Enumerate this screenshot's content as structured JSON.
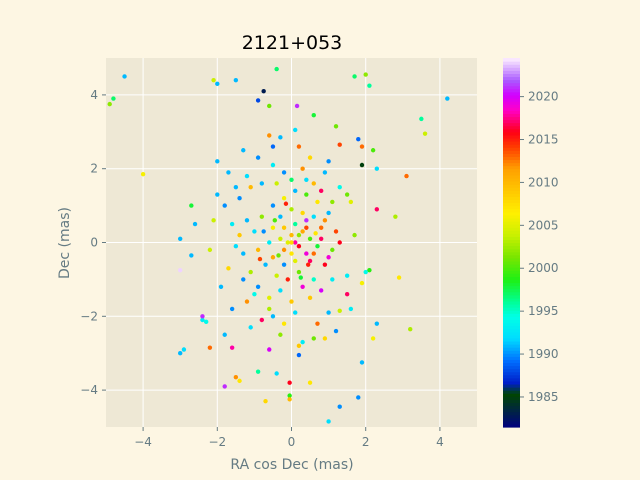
{
  "chart_data": {
    "type": "scatter",
    "title": "2121+053",
    "xlabel": "RA cos Dec (mas)",
    "ylabel": "Dec (mas)",
    "xlim": [
      -5,
      5
    ],
    "ylim": [
      -5,
      5
    ],
    "xticks": [
      -4,
      -2,
      0,
      2,
      4
    ],
    "yticks": [
      -4,
      -2,
      0,
      2,
      4
    ],
    "grid": true,
    "colorbar": {
      "label": "",
      "min": 1981.5,
      "max": 2024.5,
      "ticks": [
        1985,
        1990,
        1995,
        2000,
        2005,
        2010,
        2015,
        2020
      ],
      "colormap": "gist_ncar"
    },
    "points": [
      {
        "x": -4.5,
        "y": 4.5,
        "year": 1991
      },
      {
        "x": -4.8,
        "y": 3.9,
        "year": 1997
      },
      {
        "x": -4.9,
        "y": 3.75,
        "year": 2002
      },
      {
        "x": -4.0,
        "y": 1.85,
        "year": 2006
      },
      {
        "x": -2.1,
        "y": 4.4,
        "year": 2004
      },
      {
        "x": -2.0,
        "y": 4.3,
        "year": 1991
      },
      {
        "x": -1.5,
        "y": 4.4,
        "year": 1991
      },
      {
        "x": -0.75,
        "y": 4.1,
        "year": 1983
      },
      {
        "x": -0.4,
        "y": 4.7,
        "year": 1997
      },
      {
        "x": -0.9,
        "y": 3.85,
        "year": 1988
      },
      {
        "x": -0.6,
        "y": 3.7,
        "year": 2001
      },
      {
        "x": 0.15,
        "y": 3.7,
        "year": 2021
      },
      {
        "x": 0.6,
        "y": 3.45,
        "year": 1998
      },
      {
        "x": 1.7,
        "y": 4.5,
        "year": 1997
      },
      {
        "x": 2.0,
        "y": 4.55,
        "year": 2002
      },
      {
        "x": 2.1,
        "y": 4.25,
        "year": 1996
      },
      {
        "x": 1.2,
        "y": 3.15,
        "year": 2001
      },
      {
        "x": 1.8,
        "y": 2.8,
        "year": 1989
      },
      {
        "x": 1.9,
        "y": 2.6,
        "year": 2013
      },
      {
        "x": 2.2,
        "y": 2.5,
        "year": 2000
      },
      {
        "x": 1.3,
        "y": 2.65,
        "year": 2014
      },
      {
        "x": 0.2,
        "y": 2.6,
        "year": 2013
      },
      {
        "x": 0.1,
        "y": 3.05,
        "year": 1992
      },
      {
        "x": -0.3,
        "y": 2.85,
        "year": 1991
      },
      {
        "x": -0.6,
        "y": 2.9,
        "year": 2012
      },
      {
        "x": 1.9,
        "y": 2.1,
        "year": 1985
      },
      {
        "x": 2.3,
        "y": 2.0,
        "year": 1992
      },
      {
        "x": 3.1,
        "y": 1.8,
        "year": 2013
      },
      {
        "x": 3.5,
        "y": 3.35,
        "year": 1996
      },
      {
        "x": 3.6,
        "y": 2.95,
        "year": 2004
      },
      {
        "x": 4.2,
        "y": 3.9,
        "year": 1991
      },
      {
        "x": 2.3,
        "y": 0.9,
        "year": 2017
      },
      {
        "x": 2.8,
        "y": 0.7,
        "year": 2003
      },
      {
        "x": 2.1,
        "y": -0.75,
        "year": 1999
      },
      {
        "x": 2.0,
        "y": -0.8,
        "year": 1994
      },
      {
        "x": 2.9,
        "y": -0.95,
        "year": 2007
      },
      {
        "x": 2.2,
        "y": -2.6,
        "year": 2006
      },
      {
        "x": 2.3,
        "y": -2.2,
        "year": 1991
      },
      {
        "x": 3.2,
        "y": -2.35,
        "year": 2003
      },
      {
        "x": 1.9,
        "y": -3.25,
        "year": 1991
      },
      {
        "x": 1.8,
        "y": -4.2,
        "year": 1990
      },
      {
        "x": 1.3,
        "y": -4.45,
        "year": 1990
      },
      {
        "x": 1.0,
        "y": -4.85,
        "year": 1992
      },
      {
        "x": -0.7,
        "y": -4.3,
        "year": 2008
      },
      {
        "x": -0.4,
        "y": -3.55,
        "year": 1992
      },
      {
        "x": -0.9,
        "y": -3.5,
        "year": 1996
      },
      {
        "x": -1.5,
        "y": -3.65,
        "year": 2012
      },
      {
        "x": -1.4,
        "y": -3.75,
        "year": 2007
      },
      {
        "x": -1.8,
        "y": -3.9,
        "year": 2021
      },
      {
        "x": 0.5,
        "y": -3.8,
        "year": 2007
      },
      {
        "x": -0.05,
        "y": -3.8,
        "year": 2016
      },
      {
        "x": -0.05,
        "y": -4.15,
        "year": 1999
      },
      {
        "x": -0.05,
        "y": -4.25,
        "year": 2010
      },
      {
        "x": 0.2,
        "y": -3.05,
        "year": 1989
      },
      {
        "x": -2.9,
        "y": -2.9,
        "year": 1992
      },
      {
        "x": -3.0,
        "y": -3.0,
        "year": 1991
      },
      {
        "x": -2.2,
        "y": -2.85,
        "year": 2013
      },
      {
        "x": -1.6,
        "y": -2.85,
        "year": 2018
      },
      {
        "x": -2.4,
        "y": -2.1,
        "year": 1993
      },
      {
        "x": -2.3,
        "y": -2.15,
        "year": 1994
      },
      {
        "x": -2.4,
        "y": -2.0,
        "year": 2021
      },
      {
        "x": -1.8,
        "y": -2.5,
        "year": 1991
      },
      {
        "x": -3.0,
        "y": -0.75,
        "year": 2024
      },
      {
        "x": -2.7,
        "y": -0.35,
        "year": 1991
      },
      {
        "x": -3.0,
        "y": 0.1,
        "year": 1991
      },
      {
        "x": -2.6,
        "y": 0.5,
        "year": 1991
      },
      {
        "x": -2.7,
        "y": 1.0,
        "year": 1998
      },
      {
        "x": -2.1,
        "y": 0.6,
        "year": 2004
      },
      {
        "x": -2.0,
        "y": 2.2,
        "year": 1991
      },
      {
        "x": -2.2,
        "y": -0.2,
        "year": 2004
      },
      {
        "x": -1.7,
        "y": -0.7,
        "year": 2008
      },
      {
        "x": -1.2,
        "y": -1.6,
        "year": 2012
      },
      {
        "x": -0.8,
        "y": -2.1,
        "year": 2017
      },
      {
        "x": -0.5,
        "y": -2.0,
        "year": 1991
      },
      {
        "x": 0.3,
        "y": -2.7,
        "year": 1993
      },
      {
        "x": 0.6,
        "y": -2.6,
        "year": 2001
      },
      {
        "x": 0.9,
        "y": -2.6,
        "year": 2008
      },
      {
        "x": 1.0,
        "y": -1.9,
        "year": 1991
      },
      {
        "x": 1.3,
        "y": -1.85,
        "year": 2004
      },
      {
        "x": 1.5,
        "y": -1.4,
        "year": 2017
      },
      {
        "x": 1.5,
        "y": -0.9,
        "year": 1993
      },
      {
        "x": 1.7,
        "y": 0.2,
        "year": 2002
      },
      {
        "x": 1.6,
        "y": 1.1,
        "year": 2005
      },
      {
        "x": 1.5,
        "y": 1.3,
        "year": 2001
      },
      {
        "x": 1.3,
        "y": 1.5,
        "year": 1994
      },
      {
        "x": 0.9,
        "y": 1.9,
        "year": 1991
      },
      {
        "x": 0.6,
        "y": 1.6,
        "year": 2010
      },
      {
        "x": 0.3,
        "y": 2.0,
        "year": 2012
      },
      {
        "x": -0.2,
        "y": 1.9,
        "year": 1990
      },
      {
        "x": -0.5,
        "y": 2.1,
        "year": 1993
      },
      {
        "x": -0.9,
        "y": 2.3,
        "year": 1990
      },
      {
        "x": -1.2,
        "y": 1.8,
        "year": 1992
      },
      {
        "x": -1.5,
        "y": 1.5,
        "year": 1991
      },
      {
        "x": -1.8,
        "y": 1.0,
        "year": 1990
      },
      {
        "x": -1.6,
        "y": 0.5,
        "year": 1993
      },
      {
        "x": -1.4,
        "y": 0.2,
        "year": 2009
      },
      {
        "x": -1.3,
        "y": -0.3,
        "year": 1991
      },
      {
        "x": -1.1,
        "y": -0.8,
        "year": 2003
      },
      {
        "x": -0.9,
        "y": -1.2,
        "year": 1990
      },
      {
        "x": -0.6,
        "y": -1.5,
        "year": 2005
      },
      {
        "x": -0.3,
        "y": -1.3,
        "year": 1992
      },
      {
        "x": 0.0,
        "y": -1.6,
        "year": 2009
      },
      {
        "x": 0.3,
        "y": -1.2,
        "year": 2019
      },
      {
        "x": 0.6,
        "y": -1.0,
        "year": 1995
      },
      {
        "x": 0.9,
        "y": -0.6,
        "year": 2016
      },
      {
        "x": 1.1,
        "y": -0.2,
        "year": 2001
      },
      {
        "x": 1.2,
        "y": 0.3,
        "year": 2014
      },
      {
        "x": 1.0,
        "y": 0.8,
        "year": 1991
      },
      {
        "x": 0.7,
        "y": 1.1,
        "year": 2007
      },
      {
        "x": 0.4,
        "y": 1.3,
        "year": 2000
      },
      {
        "x": 0.1,
        "y": 1.4,
        "year": 1991
      },
      {
        "x": -0.2,
        "y": 1.2,
        "year": 2006
      },
      {
        "x": -0.5,
        "y": 1.0,
        "year": 1990
      },
      {
        "x": -0.8,
        "y": 0.7,
        "year": 2002
      },
      {
        "x": -1.0,
        "y": 0.3,
        "year": 1992
      },
      {
        "x": -0.9,
        "y": -0.2,
        "year": 2010
      },
      {
        "x": -0.7,
        "y": -0.6,
        "year": 1991
      },
      {
        "x": -0.4,
        "y": -0.9,
        "year": 2004
      },
      {
        "x": -0.1,
        "y": -1.0,
        "year": 2015
      },
      {
        "x": 0.2,
        "y": -0.8,
        "year": 2001
      },
      {
        "x": 0.5,
        "y": -0.5,
        "year": 2017
      },
      {
        "x": 0.7,
        "y": -0.1,
        "year": 1998
      },
      {
        "x": 0.8,
        "y": 0.4,
        "year": 2013
      },
      {
        "x": 0.6,
        "y": 0.7,
        "year": 1992
      },
      {
        "x": 0.3,
        "y": 0.8,
        "year": 2008
      },
      {
        "x": 0.0,
        "y": 0.9,
        "year": 2003
      },
      {
        "x": -0.3,
        "y": 0.7,
        "year": 1991
      },
      {
        "x": -0.5,
        "y": 0.4,
        "year": 2006
      },
      {
        "x": -0.6,
        "y": 0.0,
        "year": 1993
      },
      {
        "x": -0.5,
        "y": -0.4,
        "year": 2011
      },
      {
        "x": -0.2,
        "y": -0.6,
        "year": 1990
      },
      {
        "x": 0.1,
        "y": -0.5,
        "year": 2005
      },
      {
        "x": 0.4,
        "y": -0.3,
        "year": 2019
      },
      {
        "x": 0.5,
        "y": 0.1,
        "year": 2000
      },
      {
        "x": 0.4,
        "y": 0.4,
        "year": 2014
      },
      {
        "x": 0.1,
        "y": 0.5,
        "year": 1996
      },
      {
        "x": -0.2,
        "y": 0.4,
        "year": 2009
      },
      {
        "x": -0.3,
        "y": 0.1,
        "year": 2004
      },
      {
        "x": -0.2,
        "y": -0.2,
        "year": 2012
      },
      {
        "x": 0.0,
        "y": -0.3,
        "year": 2007
      },
      {
        "x": 0.2,
        "y": -0.1,
        "year": 2016
      },
      {
        "x": 0.2,
        "y": 0.2,
        "year": 2002
      },
      {
        "x": 0.0,
        "y": 0.2,
        "year": 2010
      },
      {
        "x": -0.1,
        "y": 0.0,
        "year": 2005
      },
      {
        "x": 0.1,
        "y": 0.0,
        "year": 2018
      },
      {
        "x": 0.0,
        "y": 0.0,
        "year": 2008
      },
      {
        "x": 0.3,
        "y": 0.3,
        "year": 2011
      },
      {
        "x": -0.35,
        "y": -0.35,
        "year": 2001
      },
      {
        "x": 0.6,
        "y": -0.3,
        "year": 2013
      },
      {
        "x": 0.45,
        "y": -0.6,
        "year": 2015
      },
      {
        "x": 0.8,
        "y": 0.1,
        "year": 2017
      },
      {
        "x": 1.0,
        "y": -0.4,
        "year": 2019
      },
      {
        "x": 1.3,
        "y": 0.0,
        "year": 2016
      },
      {
        "x": 0.9,
        "y": 0.6,
        "year": 2012
      },
      {
        "x": -0.75,
        "y": 0.3,
        "year": 1990
      },
      {
        "x": -1.2,
        "y": 0.6,
        "year": 1991
      },
      {
        "x": -1.5,
        "y": -0.1,
        "year": 1992
      },
      {
        "x": -1.3,
        "y": -1.0,
        "year": 1990
      },
      {
        "x": -1.0,
        "y": -1.4,
        "year": 1994
      },
      {
        "x": -0.6,
        "y": -1.8,
        "year": 2003
      },
      {
        "x": -0.2,
        "y": -2.2,
        "year": 2007
      },
      {
        "x": 0.1,
        "y": -1.9,
        "year": 1992
      },
      {
        "x": 0.5,
        "y": -1.5,
        "year": 2009
      },
      {
        "x": 0.8,
        "y": -1.3,
        "year": 2020
      },
      {
        "x": 1.1,
        "y": -1.0,
        "year": 1993
      },
      {
        "x": -1.4,
        "y": 1.2,
        "year": 1990
      },
      {
        "x": -1.1,
        "y": 1.5,
        "year": 2010
      },
      {
        "x": -0.8,
        "y": 1.6,
        "year": 1991
      },
      {
        "x": -0.4,
        "y": 1.6,
        "year": 2004
      },
      {
        "x": 0.0,
        "y": 1.7,
        "year": 1997
      },
      {
        "x": 0.4,
        "y": 1.7,
        "year": 1992
      },
      {
        "x": 0.8,
        "y": 1.4,
        "year": 2017
      },
      {
        "x": 1.1,
        "y": 1.1,
        "year": 2002
      },
      {
        "x": -1.7,
        "y": 1.9,
        "year": 1991
      },
      {
        "x": -1.3,
        "y": 2.5,
        "year": 1991
      },
      {
        "x": -0.5,
        "y": 2.6,
        "year": 1989
      },
      {
        "x": 0.5,
        "y": 2.3,
        "year": 2008
      },
      {
        "x": 1.0,
        "y": 2.2,
        "year": 1990
      },
      {
        "x": -2.0,
        "y": 1.3,
        "year": 1991
      },
      {
        "x": -1.9,
        "y": -1.2,
        "year": 1991
      },
      {
        "x": -1.6,
        "y": -1.8,
        "year": 1990
      },
      {
        "x": -1.1,
        "y": -2.3,
        "year": 1992
      },
      {
        "x": 0.7,
        "y": -2.2,
        "year": 2013
      },
      {
        "x": 1.2,
        "y": -2.4,
        "year": 1990
      },
      {
        "x": 1.6,
        "y": -1.8,
        "year": 1993
      },
      {
        "x": 1.9,
        "y": -1.1,
        "year": 2006
      },
      {
        "x": -0.3,
        "y": -2.5,
        "year": 2002
      },
      {
        "x": 0.2,
        "y": -2.8,
        "year": 2009
      },
      {
        "x": -0.6,
        "y": -2.9,
        "year": 2020
      },
      {
        "x": 0.4,
        "y": 0.6,
        "year": 2021
      },
      {
        "x": -0.45,
        "y": 0.6,
        "year": 2000
      },
      {
        "x": 0.65,
        "y": 0.25,
        "year": 2007
      },
      {
        "x": -0.85,
        "y": -0.45,
        "year": 2014
      },
      {
        "x": 0.25,
        "y": -0.95,
        "year": 1998
      },
      {
        "x": -0.15,
        "y": 1.05,
        "year": 2015
      }
    ]
  }
}
